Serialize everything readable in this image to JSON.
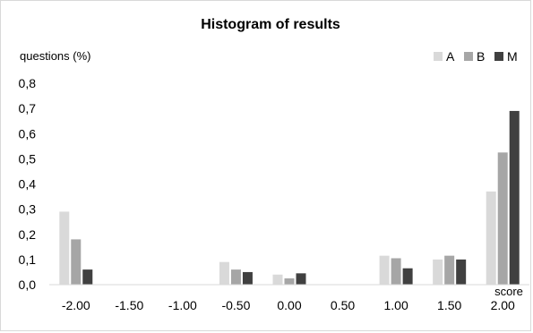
{
  "chart_data": {
    "type": "bar",
    "title": "Histogram of results",
    "ylabel": "questions (%)",
    "xlabel": "score",
    "categories": [
      "-2.00",
      "-1.50",
      "-1.00",
      "-0.50",
      "0.00",
      "0.50",
      "1.00",
      "1.50",
      "2.00"
    ],
    "y_ticks": [
      "0,0",
      "0,1",
      "0,2",
      "0,3",
      "0,4",
      "0,5",
      "0,6",
      "0,7",
      "0,8"
    ],
    "ylim": [
      0,
      0.8
    ],
    "grid": false,
    "legend_position": "top-right",
    "series": [
      {
        "name": "A",
        "color": "#d9d9d9",
        "values": [
          0.29,
          0,
          0,
          0.09,
          0.04,
          0,
          0.115,
          0.1,
          0.37
        ]
      },
      {
        "name": "B",
        "color": "#a6a6a6",
        "values": [
          0.18,
          0,
          0,
          0.06,
          0.025,
          0,
          0.105,
          0.115,
          0.525
        ]
      },
      {
        "name": "M",
        "color": "#404040",
        "values": [
          0.06,
          0,
          0,
          0.05,
          0.045,
          0,
          0.065,
          0.1,
          0.69
        ]
      }
    ]
  }
}
